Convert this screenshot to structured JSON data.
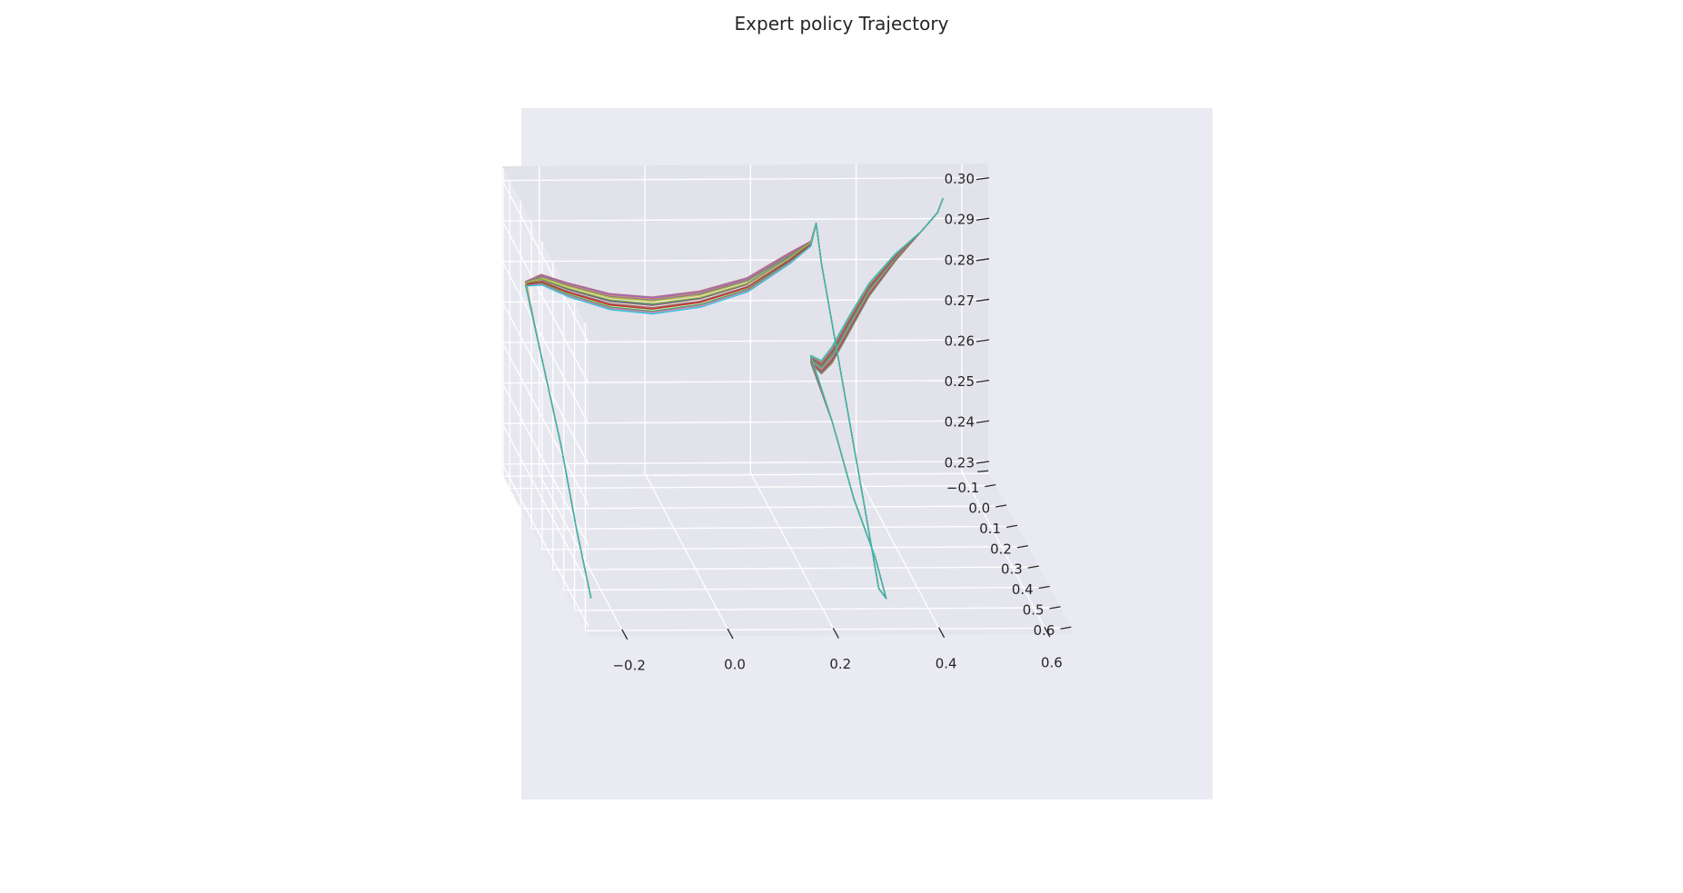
{
  "chart_data": {
    "type": "line",
    "projection": "3d",
    "title": "Expert policy Trajectory",
    "xlabel": "",
    "ylabel": "",
    "zlabel": "",
    "x_ticks": [
      "0.6",
      "0.4",
      "0.2",
      "0.0",
      "−0.2"
    ],
    "y_ticks": [
      "−0.1",
      "0.0",
      "0.1",
      "0.2",
      "0.3",
      "0.4",
      "0.5",
      "0.6"
    ],
    "z_ticks": [
      "0.30",
      "0.29",
      "0.28",
      "0.27",
      "0.26",
      "0.25",
      "0.24",
      "0.23"
    ],
    "xlim": [
      0.65,
      -0.27
    ],
    "ylim": [
      -0.17,
      0.63
    ],
    "zlim": [
      0.2275,
      0.3035
    ],
    "grid": true,
    "background": "#eaeaf2",
    "series_count": 20,
    "series_colors": [
      "#1f77b4",
      "#ff7f0e",
      "#2ca02c",
      "#d62728",
      "#9467bd",
      "#8c564b",
      "#e377c2",
      "#7f7f7f",
      "#bcbd22",
      "#17becf"
    ],
    "trajectory_template": [
      {
        "x": 0.55,
        "y": -0.1,
        "z": 0.2985
      },
      {
        "x": 0.54,
        "y": -0.1,
        "z": 0.295
      },
      {
        "x": 0.51,
        "y": -0.1,
        "z": 0.2905
      },
      {
        "x": 0.46,
        "y": -0.1,
        "z": 0.284
      },
      {
        "x": 0.41,
        "y": -0.1,
        "z": 0.276
      },
      {
        "x": 0.37,
        "y": -0.1,
        "z": 0.267
      },
      {
        "x": 0.34,
        "y": -0.1,
        "z": 0.26
      },
      {
        "x": 0.32,
        "y": -0.1,
        "z": 0.257
      },
      {
        "x": 0.3,
        "y": -0.1,
        "z": 0.259
      },
      {
        "x": 0.31,
        "y": 0.05,
        "z": 0.251
      },
      {
        "x": 0.31,
        "y": 0.25,
        "z": 0.242
      },
      {
        "x": 0.32,
        "y": 0.4,
        "z": 0.235
      },
      {
        "x": 0.32,
        "y": 0.5,
        "z": 0.23
      },
      {
        "x": 0.31,
        "y": 0.48,
        "z": 0.2315
      },
      {
        "x": 0.31,
        "y": 0.35,
        "z": 0.245
      },
      {
        "x": 0.31,
        "y": 0.15,
        "z": 0.265
      },
      {
        "x": 0.31,
        "y": -0.05,
        "z": 0.285
      },
      {
        "x": 0.31,
        "y": -0.1,
        "z": 0.2925
      },
      {
        "x": 0.3,
        "y": -0.1,
        "z": 0.2875
      },
      {
        "x": 0.26,
        "y": -0.1,
        "z": 0.284
      },
      {
        "x": 0.18,
        "y": -0.1,
        "z": 0.2775
      },
      {
        "x": 0.09,
        "y": -0.1,
        "z": 0.274
      },
      {
        "x": 0.0,
        "y": -0.1,
        "z": 0.2725
      },
      {
        "x": -0.08,
        "y": -0.1,
        "z": 0.2735
      },
      {
        "x": -0.16,
        "y": -0.1,
        "z": 0.2765
      },
      {
        "x": -0.21,
        "y": -0.1,
        "z": 0.279
      },
      {
        "x": -0.24,
        "y": -0.1,
        "z": 0.278
      },
      {
        "x": -0.245,
        "y": 0.05,
        "z": 0.27
      },
      {
        "x": -0.245,
        "y": 0.25,
        "z": 0.256
      },
      {
        "x": -0.245,
        "y": 0.4,
        "z": 0.242
      },
      {
        "x": -0.245,
        "y": 0.53,
        "z": 0.232
      }
    ]
  }
}
